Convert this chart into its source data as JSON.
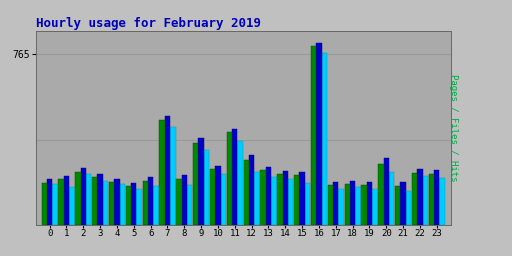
{
  "title": "Hourly usage for February 2019",
  "ylabel": "Pages / Files / Hits",
  "background_color": "#c0c0c0",
  "plot_bg_color": "#aaaaaa",
  "hours": [
    0,
    1,
    2,
    3,
    4,
    5,
    6,
    7,
    8,
    9,
    10,
    11,
    12,
    13,
    14,
    15,
    16,
    17,
    18,
    19,
    20,
    21,
    22,
    23
  ],
  "pages": [
    190,
    205,
    240,
    215,
    195,
    175,
    200,
    470,
    205,
    370,
    250,
    415,
    290,
    245,
    230,
    225,
    800,
    180,
    185,
    180,
    275,
    175,
    235,
    230
  ],
  "files": [
    205,
    220,
    255,
    230,
    205,
    190,
    215,
    490,
    225,
    390,
    265,
    430,
    315,
    260,
    242,
    240,
    815,
    195,
    200,
    192,
    300,
    192,
    250,
    248
  ],
  "hits": [
    185,
    172,
    228,
    200,
    185,
    162,
    175,
    440,
    180,
    335,
    228,
    375,
    240,
    218,
    205,
    190,
    770,
    162,
    172,
    162,
    240,
    152,
    222,
    210
  ],
  "pages_color": "#008800",
  "files_color": "#0000cc",
  "hits_color": "#00ccff",
  "ytick_label": "765",
  "ytick_val": 765,
  "grid_line2": 383,
  "ylim_max": 870,
  "title_color": "#0000bb",
  "ylabel_color": "#00aa44",
  "grid_color": "#999999",
  "bar_width": 0.32,
  "figsize": [
    5.12,
    2.56
  ],
  "dpi": 100
}
